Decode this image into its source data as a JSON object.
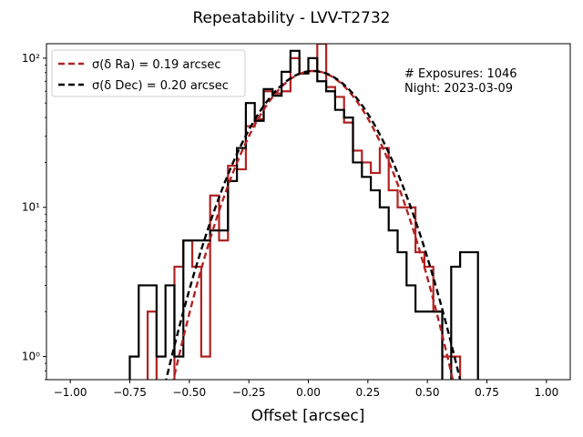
{
  "chart_data": {
    "type": "histogram",
    "title": "Repeatability - LVV-T2732",
    "xlabel": "Offset [arcsec]",
    "ylabel": "",
    "xlim": [
      -1.1,
      1.1
    ],
    "ylim": [
      0.7,
      125
    ],
    "yscale": "log",
    "x_ticks": [
      -1.0,
      -0.75,
      -0.5,
      -0.25,
      0.0,
      0.25,
      0.5,
      0.75,
      1.0
    ],
    "x_tick_labels": [
      "−1.00",
      "−0.75",
      "−0.50",
      "−0.25",
      "0.00",
      "0.25",
      "0.50",
      "0.75",
      "1.00"
    ],
    "y_ticks": [
      1,
      10,
      100
    ],
    "y_tick_labels": [
      "10⁰",
      "10¹",
      "10²"
    ],
    "grid": false,
    "legend_position": "top-left",
    "annotations": [
      "# Exposures: 1046",
      "Night: 2023-03-09"
    ],
    "bin_edges": [
      -0.75,
      -0.7125,
      -0.675,
      -0.6375,
      -0.6,
      -0.5625,
      -0.525,
      -0.4875,
      -0.45,
      -0.4125,
      -0.375,
      -0.3375,
      -0.3,
      -0.2625,
      -0.225,
      -0.1875,
      -0.15,
      -0.1125,
      -0.075,
      -0.0375,
      0.0,
      0.0375,
      0.075,
      0.1125,
      0.15,
      0.1875,
      0.225,
      0.2625,
      0.3,
      0.3375,
      0.375,
      0.4125,
      0.45,
      0.4875,
      0.525,
      0.5625,
      0.6,
      0.6375,
      0.675,
      0.7125,
      0.75
    ],
    "series": [
      {
        "name": "σ(δ Ra) = 0.19 arcsec",
        "color": "#b22222",
        "kind": "histogram",
        "counts": [
          0,
          0,
          2,
          0,
          0,
          4,
          6,
          4,
          1,
          12,
          6,
          19,
          18,
          35,
          39,
          60,
          58,
          60,
          100,
          79,
          82,
          125,
          64,
          55,
          37,
          24,
          20,
          17,
          25,
          13,
          10,
          10,
          5,
          4,
          2,
          1,
          1,
          0,
          0,
          0
        ]
      },
      {
        "name": "σ(δ Dec) = 0.20 arcsec",
        "color": "#000000",
        "kind": "histogram",
        "counts": [
          1,
          3,
          3,
          1,
          3,
          1,
          6,
          6,
          6,
          7,
          7,
          15,
          25,
          50,
          38,
          62,
          56,
          81,
          112,
          79,
          100,
          70,
          60,
          45,
          40,
          20,
          16,
          13,
          10,
          7,
          5,
          3,
          2,
          2,
          2,
          0,
          4,
          5,
          5,
          0
        ]
      }
    ],
    "fits": [
      {
        "name": "σ(δ Ra) = 0.19 arcsec",
        "color": "#b22222",
        "mu": 0.02,
        "sigma": 0.19,
        "amplitude": 82,
        "dashed": true
      },
      {
        "name": "σ(δ Dec) = 0.20 arcsec",
        "color": "#000000",
        "mu": 0.02,
        "sigma": 0.2,
        "amplitude": 82,
        "dashed": true
      }
    ]
  }
}
